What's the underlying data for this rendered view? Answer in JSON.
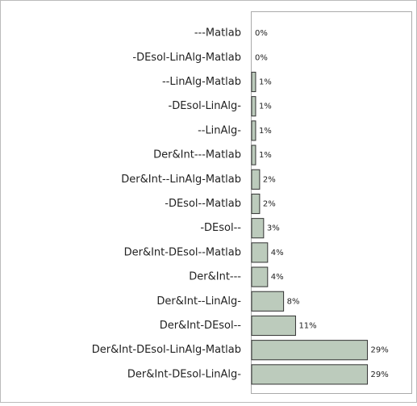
{
  "chart_data": {
    "type": "bar",
    "orientation": "horizontal",
    "categories": [
      "---Matlab",
      "-DEsol-LinAlg-Matlab",
      "--LinAlg-Matlab",
      "-DEsol-LinAlg-",
      "--LinAlg-",
      "Der&Int---Matlab",
      "Der&Int--LinAlg-Matlab",
      "-DEsol--Matlab",
      "-DEsol--",
      "Der&Int-DEsol--Matlab",
      "Der&Int---",
      "Der&Int--LinAlg-",
      "Der&Int-DEsol--",
      "Der&Int-DEsol-LinAlg-Matlab",
      "Der&Int-DEsol-LinAlg-"
    ],
    "values": [
      0,
      0,
      1,
      1,
      1,
      1,
      2,
      2,
      3,
      4,
      4,
      8,
      11,
      29,
      29
    ],
    "value_labels": [
      "0%",
      "0%",
      "1%",
      "1%",
      "1%",
      "1%",
      "2%",
      "2%",
      "3%",
      "4%",
      "4%",
      "8%",
      "11%",
      "29%",
      "29%"
    ],
    "color": "#bccbbc",
    "xlim": [
      0,
      40
    ]
  }
}
